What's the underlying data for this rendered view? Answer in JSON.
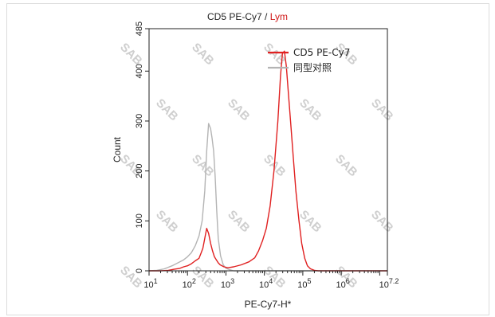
{
  "chart_data": {
    "type": "histogram",
    "title": {
      "marker": "CD5 PE-Cy7",
      "separator": "/",
      "population": "Lym"
    },
    "xlabel": "PE-Cy7-H*",
    "ylabel": "Count",
    "x_scale": "log",
    "xlim": [
      10,
      15848932
    ],
    "ylim": [
      0,
      485
    ],
    "x_ticks": [
      {
        "base": "10",
        "exp": "1",
        "value": 10
      },
      {
        "base": "10",
        "exp": "2",
        "value": 100
      },
      {
        "base": "10",
        "exp": "3",
        "value": 1000
      },
      {
        "base": "10",
        "exp": "4",
        "value": 10000
      },
      {
        "base": "10",
        "exp": "5",
        "value": 100000
      },
      {
        "base": "10",
        "exp": "6",
        "value": 1000000
      },
      {
        "base": "10",
        "exp": "7.2",
        "value": 15848932
      }
    ],
    "y_ticks": [
      0,
      100,
      200,
      300,
      400,
      485
    ],
    "legend_position": "top-right",
    "watermark": "SAB",
    "colors": {
      "cd5": "#e02020",
      "isotype": "#b4b4b4",
      "title_population": "#d01818"
    },
    "series": [
      {
        "name": "CD5 PE-Cy7",
        "color": "#e02020",
        "points": [
          [
            1.0,
            0
          ],
          [
            1.3,
            0
          ],
          [
            1.5,
            1
          ],
          [
            1.65,
            3
          ],
          [
            1.8,
            5
          ],
          [
            1.9,
            8
          ],
          [
            2.0,
            10
          ],
          [
            2.1,
            14
          ],
          [
            2.2,
            20
          ],
          [
            2.3,
            25
          ],
          [
            2.35,
            35
          ],
          [
            2.4,
            45
          ],
          [
            2.45,
            65
          ],
          [
            2.5,
            85
          ],
          [
            2.55,
            75
          ],
          [
            2.6,
            55
          ],
          [
            2.65,
            40
          ],
          [
            2.7,
            28
          ],
          [
            2.75,
            22
          ],
          [
            2.8,
            16
          ],
          [
            2.85,
            12
          ],
          [
            2.95,
            8
          ],
          [
            3.05,
            6
          ],
          [
            3.2,
            8
          ],
          [
            3.4,
            12
          ],
          [
            3.6,
            18
          ],
          [
            3.75,
            26
          ],
          [
            3.85,
            40
          ],
          [
            3.95,
            60
          ],
          [
            4.05,
            85
          ],
          [
            4.15,
            130
          ],
          [
            4.25,
            200
          ],
          [
            4.35,
            300
          ],
          [
            4.42,
            390
          ],
          [
            4.47,
            435
          ],
          [
            4.52,
            440
          ],
          [
            4.57,
            410
          ],
          [
            4.62,
            360
          ],
          [
            4.68,
            300
          ],
          [
            4.75,
            230
          ],
          [
            4.82,
            160
          ],
          [
            4.9,
            100
          ],
          [
            4.97,
            55
          ],
          [
            5.05,
            25
          ],
          [
            5.12,
            10
          ],
          [
            5.2,
            4
          ],
          [
            5.3,
            1
          ],
          [
            5.4,
            0
          ],
          [
            7.2,
            0
          ]
        ]
      },
      {
        "name": "同型对照",
        "color": "#b4b4b4",
        "points": [
          [
            1.0,
            0
          ],
          [
            1.2,
            1
          ],
          [
            1.4,
            4
          ],
          [
            1.6,
            10
          ],
          [
            1.75,
            16
          ],
          [
            1.9,
            22
          ],
          [
            2.0,
            28
          ],
          [
            2.1,
            36
          ],
          [
            2.2,
            50
          ],
          [
            2.3,
            70
          ],
          [
            2.38,
            100
          ],
          [
            2.45,
            160
          ],
          [
            2.5,
            240
          ],
          [
            2.55,
            295
          ],
          [
            2.6,
            285
          ],
          [
            2.64,
            265
          ],
          [
            2.68,
            240
          ],
          [
            2.72,
            190
          ],
          [
            2.76,
            120
          ],
          [
            2.8,
            65
          ],
          [
            2.86,
            30
          ],
          [
            2.93,
            12
          ],
          [
            3.0,
            5
          ],
          [
            3.1,
            2
          ],
          [
            3.2,
            0
          ],
          [
            7.2,
            0
          ]
        ]
      }
    ]
  }
}
